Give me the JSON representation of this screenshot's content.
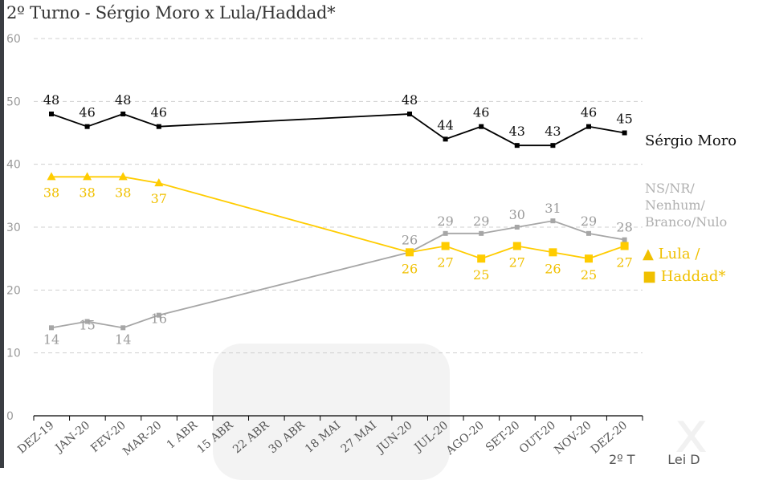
{
  "title": "2º Turno - Sérgio Moro x Lula/Haddad*",
  "footer_text": "2º T        Lei D",
  "chart_data": {
    "type": "line",
    "categories": [
      "DEZ-19",
      "JAN-20",
      "FEV-20",
      "MAR-20",
      "1 ABR",
      "15 ABR",
      "22 ABR",
      "30 ABR",
      "18 MAI",
      "27 MAI",
      "JUN-20",
      "JUL-20",
      "AGO-20",
      "SET-20",
      "OUT-20",
      "NOV-20",
      "DEZ-20"
    ],
    "y_ticks": [
      0,
      10,
      20,
      30,
      40,
      50,
      60
    ],
    "ylim": [
      0,
      60
    ],
    "grid": "horizontal dashed",
    "series": [
      {
        "name": "Sérgio Moro",
        "label_lines": [
          "Sérgio Moro"
        ],
        "color": "#000000",
        "marker": "square",
        "values": [
          48,
          46,
          48,
          46,
          null,
          null,
          null,
          null,
          null,
          null,
          48,
          44,
          46,
          43,
          43,
          46,
          45
        ]
      },
      {
        "name": "NS/NR/ Nenhum/ Branco/Nulo",
        "label_lines": [
          "NS/NR/",
          "Nenhum/",
          "Branco/Nulo"
        ],
        "color": "#a6a6a6",
        "marker": "square",
        "values": [
          14,
          15,
          14,
          16,
          null,
          null,
          null,
          null,
          null,
          null,
          26,
          29,
          29,
          30,
          31,
          29,
          28
        ]
      },
      {
        "name": "Lula / Haddad*",
        "label_lines": [
          "▲ Lula /",
          "■ Haddad*"
        ],
        "color": "#ffcc00",
        "marker": "triangle-then-square",
        "values": [
          38,
          38,
          38,
          37,
          null,
          null,
          null,
          null,
          null,
          null,
          26,
          27,
          25,
          27,
          26,
          25,
          27
        ]
      }
    ]
  },
  "watermark_icon": "app-logo-watermark"
}
